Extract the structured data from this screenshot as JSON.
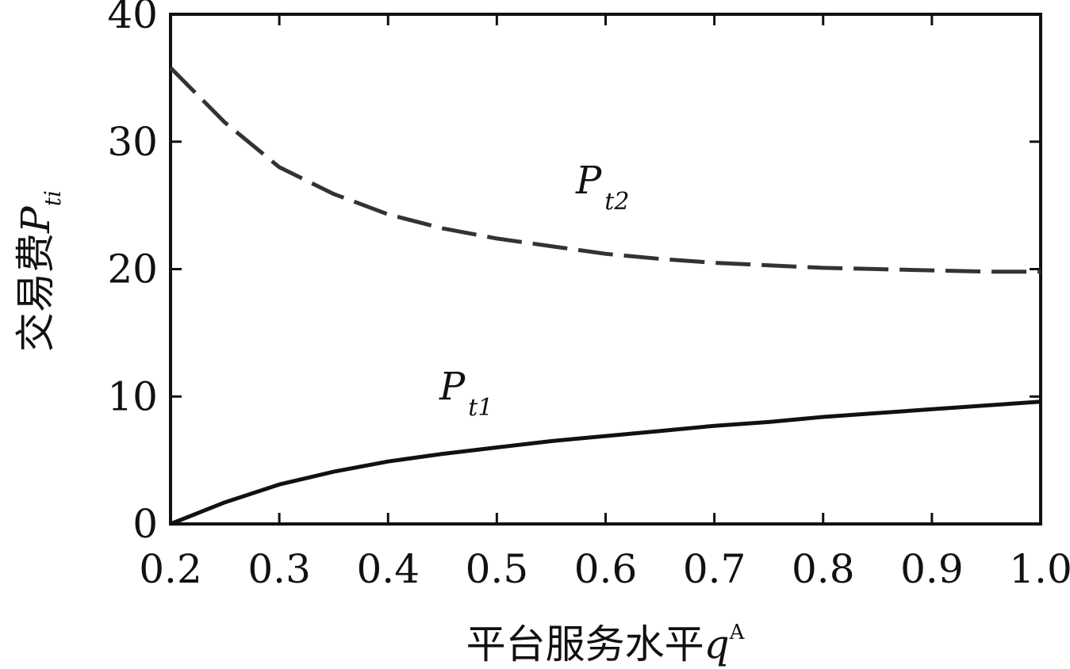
{
  "chart_data": {
    "type": "line",
    "xlabel": "平台服务水平",
    "xlabel_var": "q",
    "xlabel_sup": "A",
    "ylabel": "交易费",
    "ylabel_var": "P",
    "ylabel_sub": "ti",
    "xlim": [
      0.2,
      1.0
    ],
    "ylim": [
      0,
      40
    ],
    "x_ticks": [
      "0.2",
      "0.3",
      "0.4",
      "0.5",
      "0.6",
      "0.7",
      "0.8",
      "0.9",
      "1.0"
    ],
    "y_ticks": [
      "0",
      "10",
      "20",
      "30",
      "40"
    ],
    "grid": false,
    "series": [
      {
        "name": "P",
        "name_sub": "t1",
        "style": "solid",
        "color": "#111111",
        "x": [
          0.2,
          0.25,
          0.3,
          0.35,
          0.4,
          0.45,
          0.5,
          0.55,
          0.6,
          0.65,
          0.7,
          0.75,
          0.8,
          0.85,
          0.9,
          0.95,
          1.0
        ],
        "y": [
          0,
          1.7,
          3.1,
          4.1,
          4.9,
          5.5,
          6.0,
          6.5,
          6.9,
          7.3,
          7.7,
          8.0,
          8.4,
          8.7,
          9.0,
          9.3,
          9.6
        ]
      },
      {
        "name": "P",
        "name_sub": "t2",
        "style": "dashed",
        "color": "#333333",
        "x": [
          0.2,
          0.25,
          0.3,
          0.35,
          0.4,
          0.45,
          0.5,
          0.55,
          0.6,
          0.65,
          0.7,
          0.75,
          0.8,
          0.85,
          0.9,
          0.95,
          1.0
        ],
        "y": [
          35.8,
          31.5,
          28.0,
          25.9,
          24.3,
          23.2,
          22.4,
          21.8,
          21.2,
          20.8,
          20.5,
          20.3,
          20.1,
          20.0,
          19.9,
          19.8,
          19.8
        ]
      }
    ]
  }
}
